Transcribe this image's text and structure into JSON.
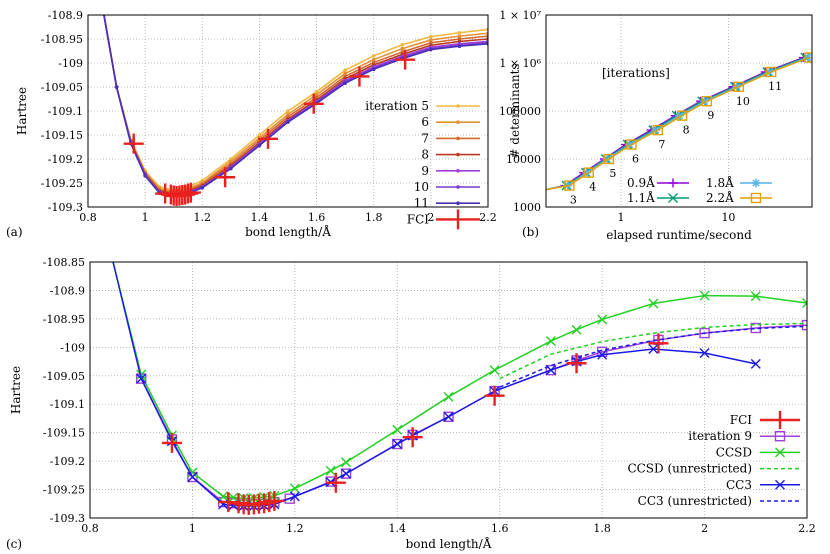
{
  "chart_data": [
    {
      "panel": "(a)",
      "type": "line",
      "xlabel": "bond length/Å",
      "ylabel": "Hartree",
      "xlim": [
        0.8,
        2.2
      ],
      "ylim": [
        -109.3,
        -108.9
      ],
      "xticks": [
        "0.8",
        "1",
        "1.2",
        "1.4",
        "1.6",
        "1.8",
        "2",
        "2.2"
      ],
      "yticks": [
        "-108.9",
        "-108.95",
        "-109",
        "-109.05",
        "-109.1",
        "-109.15",
        "-109.2",
        "-109.25",
        "-109.3"
      ],
      "grid": true,
      "legend": "right",
      "x": [
        0.85,
        0.9,
        0.95,
        1.0,
        1.05,
        1.1,
        1.15,
        1.2,
        1.3,
        1.4,
        1.5,
        1.6,
        1.7,
        1.8,
        1.9,
        2.0,
        2.1,
        2.2
      ],
      "series": [
        {
          "name": "iteration 5",
          "color": "#f0b840",
          "y": [
            -108.88,
            -109.05,
            -109.16,
            -109.225,
            -109.258,
            -109.265,
            -109.258,
            -109.245,
            -109.2,
            -109.15,
            -109.1,
            -109.06,
            -109.015,
            -108.985,
            -108.962,
            -108.945,
            -108.937,
            -108.93
          ]
        },
        {
          "name": "6",
          "color": "#e49036",
          "y": [
            -108.88,
            -109.05,
            -109.162,
            -109.228,
            -109.262,
            -109.268,
            -109.262,
            -109.25,
            -109.205,
            -109.156,
            -109.107,
            -109.066,
            -109.022,
            -108.993,
            -108.97,
            -108.952,
            -108.944,
            -108.938
          ]
        },
        {
          "name": "7",
          "color": "#d2692e",
          "y": [
            -108.88,
            -109.05,
            -109.164,
            -109.23,
            -109.265,
            -109.271,
            -109.265,
            -109.253,
            -109.21,
            -109.161,
            -109.112,
            -109.072,
            -109.028,
            -108.999,
            -108.977,
            -108.958,
            -108.95,
            -108.944
          ]
        },
        {
          "name": "8",
          "color": "#b83a22",
          "y": [
            -108.88,
            -109.05,
            -109.165,
            -109.232,
            -109.267,
            -109.273,
            -109.268,
            -109.256,
            -109.214,
            -109.166,
            -109.117,
            -109.077,
            -109.033,
            -109.004,
            -108.982,
            -108.963,
            -108.955,
            -108.95
          ]
        },
        {
          "name": "9",
          "color": "#a040d8",
          "y": [
            -108.88,
            -109.05,
            -109.166,
            -109.233,
            -109.269,
            -109.275,
            -109.27,
            -109.258,
            -109.217,
            -109.169,
            -109.12,
            -109.08,
            -109.037,
            -109.008,
            -108.986,
            -108.967,
            -108.96,
            -108.955
          ]
        },
        {
          "name": "10",
          "color": "#7a3ad0",
          "y": [
            -108.88,
            -109.05,
            -109.167,
            -109.234,
            -109.27,
            -109.276,
            -109.271,
            -109.259,
            -109.219,
            -109.171,
            -109.122,
            -109.082,
            -109.04,
            -109.011,
            -108.989,
            -108.97,
            -108.963,
            -108.958
          ]
        },
        {
          "name": "11",
          "color": "#4a30b8",
          "y": [
            -108.88,
            -109.05,
            -109.168,
            -109.235,
            -109.271,
            -109.277,
            -109.272,
            -109.26,
            -109.22,
            -109.172,
            -109.123,
            -109.084,
            -109.042,
            -109.013,
            -108.991,
            -108.972,
            -108.965,
            -108.96
          ]
        }
      ],
      "fci": {
        "name": "FCI",
        "color": "#e8201e",
        "x": [
          0.96,
          1.07,
          1.09,
          1.1,
          1.11,
          1.12,
          1.13,
          1.14,
          1.15,
          1.16,
          1.28,
          1.43,
          1.59,
          1.75,
          1.91
        ],
        "y": [
          -109.168,
          -109.272,
          -109.274,
          -109.276,
          -109.277,
          -109.276,
          -109.275,
          -109.274,
          -109.272,
          -109.27,
          -109.238,
          -109.158,
          -109.085,
          -109.028,
          -108.993
        ]
      }
    },
    {
      "panel": "(b)",
      "type": "line",
      "xlabel": "elapsed runtime/second",
      "ylabel": "# determinants",
      "xscale": "log",
      "yscale": "log",
      "xlim": [
        0.2,
        60
      ],
      "ylim": [
        1000,
        10000000
      ],
      "xticks": [
        "1",
        "10"
      ],
      "yticks": [
        "1000",
        "10000",
        "100000",
        "1 × 10⁶",
        "1 × 10⁷"
      ],
      "annotation": "[iterations]",
      "iteration_labels": [
        "3",
        "4",
        "5",
        "6",
        "7",
        "8",
        "9",
        "10",
        "11"
      ],
      "legend": "bottom-right",
      "series": [
        {
          "name": "0.9Å",
          "color": "#9400d3",
          "marker": "plus",
          "x": [
            0.3,
            0.45,
            0.7,
            1.1,
            1.9,
            3.2,
            5.5,
            11,
            22,
            50
          ],
          "y": [
            2800,
            5200,
            10000,
            20000,
            40000,
            80000,
            160000,
            320000,
            650000,
            1300000
          ]
        },
        {
          "name": "1.1Å",
          "color": "#009e73",
          "marker": "x",
          "x": [
            0.31,
            0.47,
            0.72,
            1.15,
            2.0,
            3.3,
            5.7,
            11.5,
            23,
            52
          ],
          "y": [
            2800,
            5200,
            10000,
            20000,
            40000,
            80000,
            160000,
            320000,
            650000,
            1300000
          ]
        },
        {
          "name": "1.8Å",
          "color": "#56b4e9",
          "marker": "star",
          "x": [
            0.32,
            0.48,
            0.74,
            1.2,
            2.1,
            3.5,
            6.0,
            12,
            24,
            55
          ],
          "y": [
            2800,
            5200,
            10000,
            20000,
            40000,
            80000,
            160000,
            320000,
            650000,
            1300000
          ]
        },
        {
          "name": "2.2Å",
          "color": "#e69f00",
          "marker": "square",
          "x": [
            0.33,
            0.5,
            0.77,
            1.25,
            2.2,
            3.7,
            6.3,
            12.5,
            25,
            57
          ],
          "y": [
            2800,
            5200,
            10000,
            20000,
            40000,
            80000,
            160000,
            320000,
            650000,
            1300000
          ]
        }
      ]
    },
    {
      "panel": "(c)",
      "type": "line",
      "xlabel": "bond length/Å",
      "ylabel": "Hartree",
      "xlim": [
        0.8,
        2.2
      ],
      "ylim": [
        -109.3,
        -108.85
      ],
      "xticks": [
        "0.8",
        "1",
        "1.2",
        "1.4",
        "1.6",
        "1.8",
        "2",
        "2.2"
      ],
      "yticks": [
        "-108.85",
        "-108.9",
        "-108.95",
        "-109",
        "-109.05",
        "-109.1",
        "-109.15",
        "-109.2",
        "-109.25",
        "-109.3"
      ],
      "grid": true,
      "legend": "bottom-right",
      "series": [
        {
          "name": "FCI",
          "color": "#e8201e",
          "style": "errorcross",
          "x": [
            0.96,
            1.07,
            1.09,
            1.1,
            1.11,
            1.12,
            1.13,
            1.14,
            1.15,
            1.16,
            1.28,
            1.43,
            1.59,
            1.75,
            1.91
          ],
          "y": [
            -109.168,
            -109.272,
            -109.274,
            -109.276,
            -109.277,
            -109.276,
            -109.275,
            -109.274,
            -109.272,
            -109.27,
            -109.238,
            -109.158,
            -109.085,
            -109.028,
            -108.993
          ]
        },
        {
          "name": "iteration 9",
          "color": "#a040d8",
          "style": "solid",
          "marker": "square",
          "x": [
            0.9,
            0.96,
            1.0,
            1.06,
            1.08,
            1.1,
            1.12,
            1.14,
            1.16,
            1.19,
            1.27,
            1.3,
            1.4,
            1.43,
            1.5,
            1.59,
            1.7,
            1.75,
            1.8,
            1.91,
            2.0,
            2.1,
            2.2
          ],
          "y": [
            -109.055,
            -109.162,
            -109.228,
            -109.272,
            -109.274,
            -109.276,
            -109.276,
            -109.275,
            -109.272,
            -109.266,
            -109.236,
            -109.222,
            -109.17,
            -109.154,
            -109.122,
            -109.077,
            -109.04,
            -109.023,
            -109.008,
            -108.987,
            -108.975,
            -108.966,
            -108.961
          ]
        },
        {
          "name": "CCSD",
          "color": "#22d022",
          "style": "solid",
          "marker": "x",
          "x": [
            0.9,
            0.96,
            1.0,
            1.06,
            1.08,
            1.1,
            1.12,
            1.14,
            1.16,
            1.2,
            1.27,
            1.3,
            1.4,
            1.5,
            1.59,
            1.7,
            1.75,
            1.8,
            1.9,
            2.0,
            2.1,
            2.2
          ],
          "y": [
            -109.048,
            -109.155,
            -109.22,
            -109.262,
            -109.264,
            -109.265,
            -109.265,
            -109.263,
            -109.261,
            -109.248,
            -109.217,
            -109.202,
            -109.145,
            -109.087,
            -109.04,
            -108.989,
            -108.969,
            -108.951,
            -108.923,
            -108.909,
            -108.91,
            -108.922
          ]
        },
        {
          "name": "CCSD (unrestricted)",
          "color": "#22d022",
          "style": "dashed",
          "x": [
            1.6,
            1.7,
            1.8,
            1.9,
            2.0,
            2.1,
            2.2
          ],
          "y": [
            -109.055,
            -109.012,
            -108.99,
            -108.975,
            -108.965,
            -108.96,
            -108.958
          ]
        },
        {
          "name": "CC3",
          "color": "#1a1ae8",
          "style": "solid",
          "marker": "x",
          "x": [
            0.9,
            0.96,
            1.0,
            1.06,
            1.08,
            1.1,
            1.12,
            1.14,
            1.16,
            1.2,
            1.27,
            1.3,
            1.4,
            1.43,
            1.5,
            1.59,
            1.7,
            1.75,
            1.8,
            1.9,
            2.0,
            2.1
          ],
          "y": [
            -109.055,
            -109.165,
            -109.228,
            -109.276,
            -109.278,
            -109.279,
            -109.279,
            -109.278,
            -109.276,
            -109.262,
            -109.237,
            -109.222,
            -109.17,
            -109.155,
            -109.122,
            -109.077,
            -109.04,
            -109.025,
            -109.013,
            -109.003,
            -109.01,
            -109.029
          ]
        },
        {
          "name": "CC3 (unrestricted)",
          "color": "#1a1ae8",
          "style": "dashed",
          "x": [
            1.6,
            1.7,
            1.8,
            1.9,
            2.0,
            2.1,
            2.2
          ],
          "y": [
            -109.07,
            -109.032,
            -109.005,
            -108.988,
            -108.975,
            -108.967,
            -108.963
          ]
        }
      ]
    }
  ]
}
